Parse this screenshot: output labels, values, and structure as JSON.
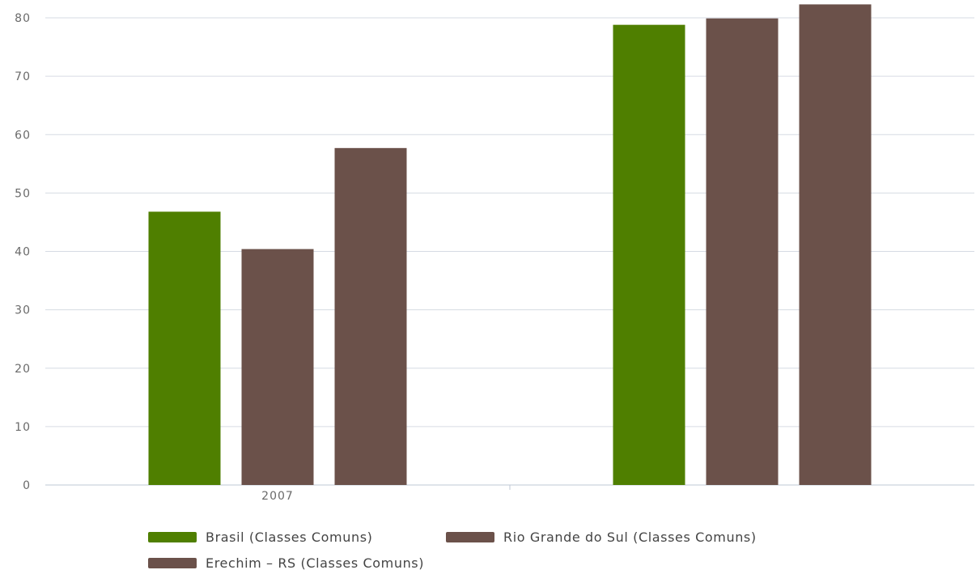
{
  "chart_data": {
    "type": "bar",
    "categories": [
      "2007",
      ""
    ],
    "series": [
      {
        "name": "Brasil (Classes Comuns)",
        "color": "#4f7f00",
        "values": [
          46.8,
          78.8
        ]
      },
      {
        "name": "Rio Grande do Sul (Classes Comuns)",
        "color": "#6b514a",
        "values": [
          40.4,
          79.9
        ]
      },
      {
        "name": "Erechim – RS (Classes Comuns)",
        "color": "#6b514a",
        "values": [
          57.7,
          82.3
        ]
      }
    ],
    "title": "",
    "xlabel": "",
    "ylabel": "",
    "ylim": [
      0,
      80
    ],
    "yticks": [
      "0",
      "10",
      "20",
      "30",
      "40",
      "50",
      "60",
      "70",
      "80"
    ],
    "grid": true,
    "legend_position": "bottom"
  }
}
